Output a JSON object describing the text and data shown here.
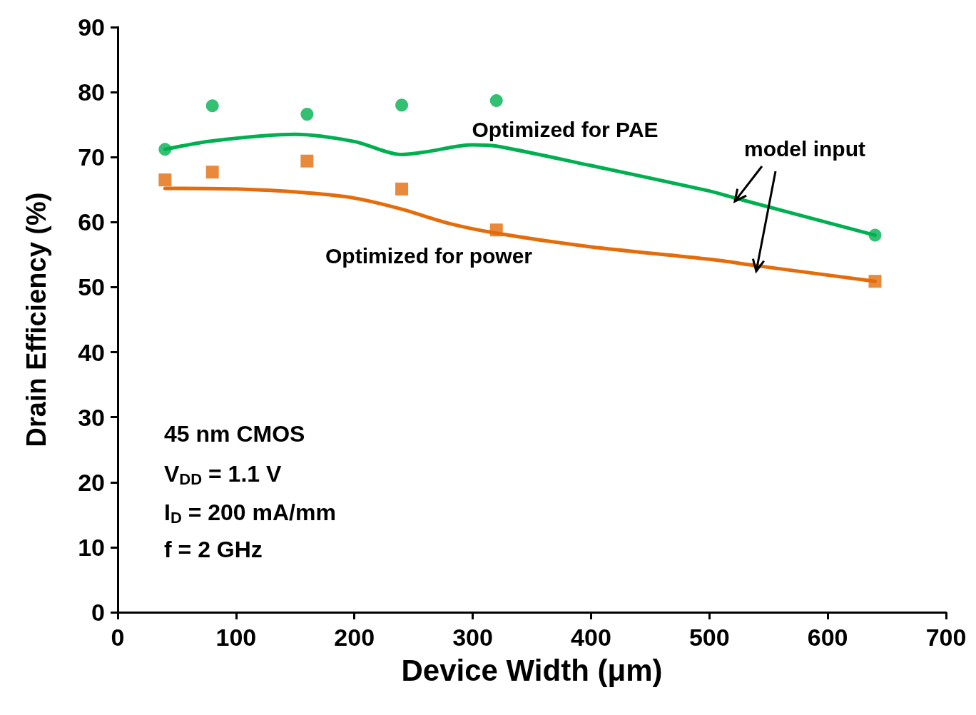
{
  "chart_data": {
    "type": "scatter",
    "xlabel": "Device Width (μm)",
    "ylabel": "Drain Efficiency (%)",
    "xlim": [
      0,
      700
    ],
    "xticks": [
      0,
      100,
      200,
      300,
      400,
      500,
      600,
      700
    ],
    "ylim": [
      0,
      90
    ],
    "yticks": [
      0,
      10,
      20,
      30,
      40,
      50,
      60,
      70,
      80,
      90
    ],
    "grid": false,
    "series": [
      {
        "marker": "circle",
        "color": "#00b050",
        "x": [
          40,
          80,
          160,
          240,
          320,
          640
        ],
        "values": [
          71.2,
          77.9,
          76.6,
          78.0,
          78.7,
          58.0
        ]
      },
      {
        "marker": "square",
        "color": "#e46c0a",
        "x": [
          40,
          80,
          160,
          240,
          320,
          640
        ],
        "values": [
          66.5,
          67.7,
          69.4,
          65.1,
          58.8,
          50.9
        ]
      },
      {
        "type": "line",
        "marker": "none",
        "color": "#00b050",
        "x": [
          40,
          80,
          150,
          200,
          240,
          260,
          300,
          320,
          400,
          500,
          520,
          640
        ],
        "values": [
          71.2,
          72.5,
          73.5,
          72.4,
          70.4,
          70.8,
          71.9,
          71.7,
          68.7,
          64.8,
          63.8,
          58.0
        ]
      },
      {
        "type": "line",
        "marker": "none",
        "color": "#e46c0a",
        "x": [
          40,
          100,
          160,
          200,
          240,
          280,
          320,
          400,
          500,
          540,
          640
        ],
        "values": [
          65.2,
          65.1,
          64.5,
          63.7,
          62.0,
          59.8,
          58.3,
          56.2,
          54.3,
          53.3,
          50.9
        ]
      }
    ],
    "annotations": [
      "Optimized for PAE",
      "Optimized for power",
      {
        "text": "model input",
        "x": 521.5,
        "y": 63.2
      },
      "45 nm CMOS",
      "V$_{DD}$ = 1.1 V",
      "I$_{D}$ = 200 mA/mm",
      "f = 2 GHz"
    ]
  }
}
